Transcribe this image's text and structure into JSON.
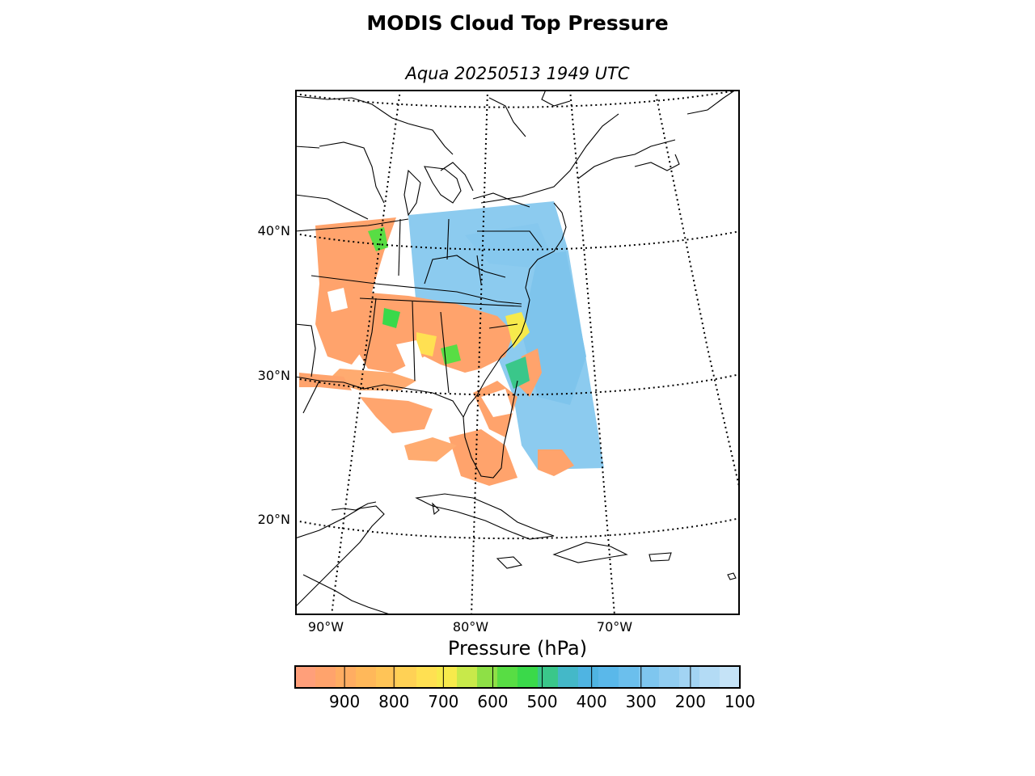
{
  "title": "MODIS Cloud Top Pressure",
  "subtitle": "Aqua 20250513 1949 UTC",
  "map": {
    "lat_labels": [
      "40°N",
      "30°N",
      "20°N"
    ],
    "lon_labels": [
      "90°W",
      "80°W",
      "70°W"
    ],
    "coastline_color": "#000000",
    "graticule_style": "dotted"
  },
  "colorbar": {
    "label": "Pressure (hPa)",
    "ticks": [
      "900",
      "800",
      "700",
      "600",
      "500",
      "400",
      "300",
      "200",
      "100"
    ],
    "range": [
      1000,
      100
    ],
    "colors": [
      "#ff9f7a",
      "#ffa36c",
      "#ffad62",
      "#ffb85a",
      "#ffc457",
      "#ffd155",
      "#ffe052",
      "#f7ea4c",
      "#c8e94a",
      "#8ee046",
      "#58dd44",
      "#3ad94a",
      "#3ac78a",
      "#44b8c8",
      "#4fb4e2",
      "#5ab8ea",
      "#6bbfed",
      "#7ec6ef",
      "#91cdf1",
      "#a2d4f3",
      "#b3dbf5",
      "#c5e3f7"
    ]
  },
  "legend_colors": {
    "low_cloud": "#ffa36c",
    "mid_cloud": "#3ad94a",
    "high_cloud": "#7ec6ef"
  }
}
